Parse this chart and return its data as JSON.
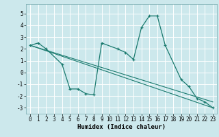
{
  "xlabel": "Humidex (Indice chaleur)",
  "bg_color": "#cce8ec",
  "grid_color": "#ffffff",
  "line_color": "#1a7a6e",
  "xlim": [
    -0.5,
    23.5
  ],
  "ylim": [
    -3.5,
    5.8
  ],
  "yticks": [
    -3,
    -2,
    -1,
    0,
    1,
    2,
    3,
    4,
    5
  ],
  "xticks": [
    0,
    1,
    2,
    3,
    4,
    5,
    6,
    7,
    8,
    9,
    10,
    11,
    12,
    13,
    14,
    15,
    16,
    17,
    18,
    19,
    20,
    21,
    22,
    23
  ],
  "line1_x": [
    0,
    1,
    2,
    4,
    5,
    6,
    7,
    8,
    9,
    11,
    12,
    13,
    14,
    15,
    16,
    17,
    19,
    20,
    21,
    22,
    23
  ],
  "line1_y": [
    2.3,
    2.5,
    2.0,
    0.7,
    -1.4,
    -1.4,
    -1.8,
    -1.9,
    2.5,
    2.0,
    1.7,
    1.1,
    3.8,
    4.8,
    4.8,
    2.3,
    -0.6,
    -1.2,
    -2.2,
    -2.5,
    -3.0
  ],
  "line2_x": [
    0,
    23
  ],
  "line2_y": [
    2.3,
    -3.0
  ],
  "line3_x": [
    0,
    23
  ],
  "line3_y": [
    2.3,
    -2.5
  ],
  "tick_fontsize": 5.5,
  "label_fontsize": 6.5
}
